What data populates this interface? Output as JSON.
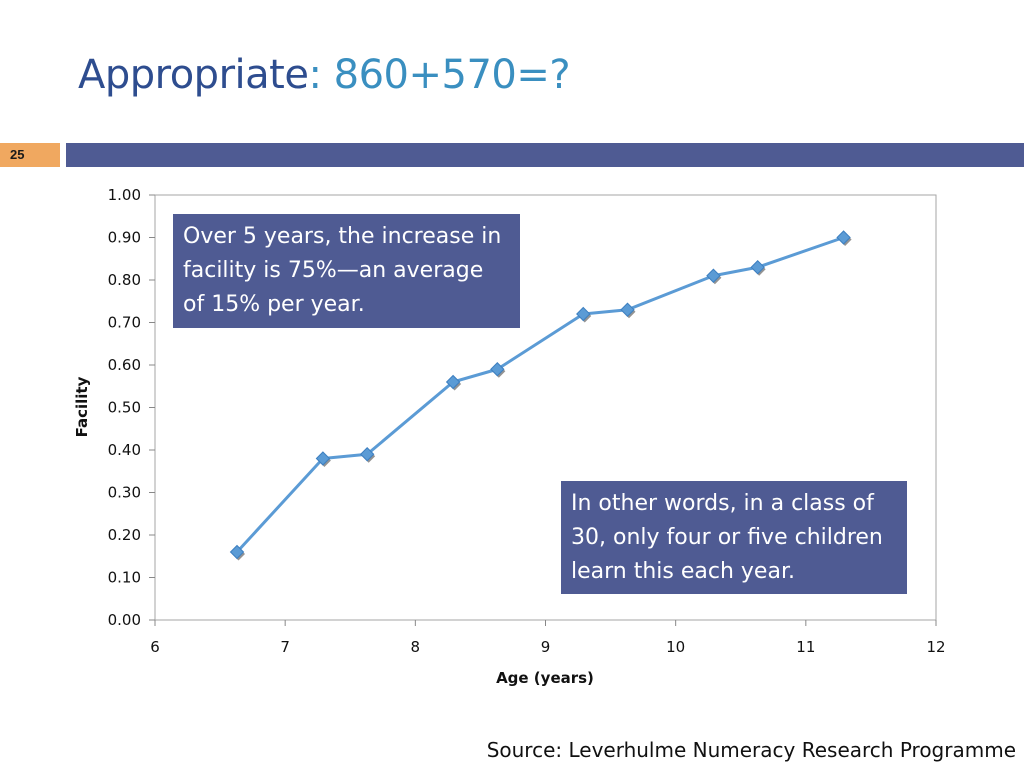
{
  "slide": {
    "title_main": "Appropriate",
    "title_expr": ": 860+570=?",
    "page_number": "25",
    "source": "Source: Leverhulme Numeracy Research Programme",
    "accent_color": "#4f5b93",
    "badge_color": "#f0a860",
    "line_color": "#5b9bd5"
  },
  "callouts": {
    "top": "Over 5 years, the increase in facility is 75%—an average of 15% per year.",
    "bottom": "In other words, in a class of 30, only four or five children learn this each year."
  },
  "chart_data": {
    "type": "line",
    "xlabel": "Age (years)",
    "ylabel": "Facility",
    "xlim": [
      6,
      12
    ],
    "ylim": [
      0,
      1
    ],
    "x_ticks": [
      "6",
      "7",
      "8",
      "9",
      "10",
      "11",
      "12"
    ],
    "y_ticks": [
      "0.00",
      "0.10",
      "0.20",
      "0.30",
      "0.40",
      "0.50",
      "0.60",
      "0.70",
      "0.80",
      "0.90",
      "1.00"
    ],
    "grid": false,
    "legend": "none",
    "marker": "diamond",
    "series": [
      {
        "x": [
          6.63,
          7.29,
          7.63,
          8.29,
          8.63,
          9.29,
          9.63,
          10.29,
          10.63,
          11.29
        ],
        "y": [
          0.16,
          0.38,
          0.39,
          0.56,
          0.59,
          0.72,
          0.73,
          0.81,
          0.83,
          0.9
        ]
      }
    ]
  }
}
